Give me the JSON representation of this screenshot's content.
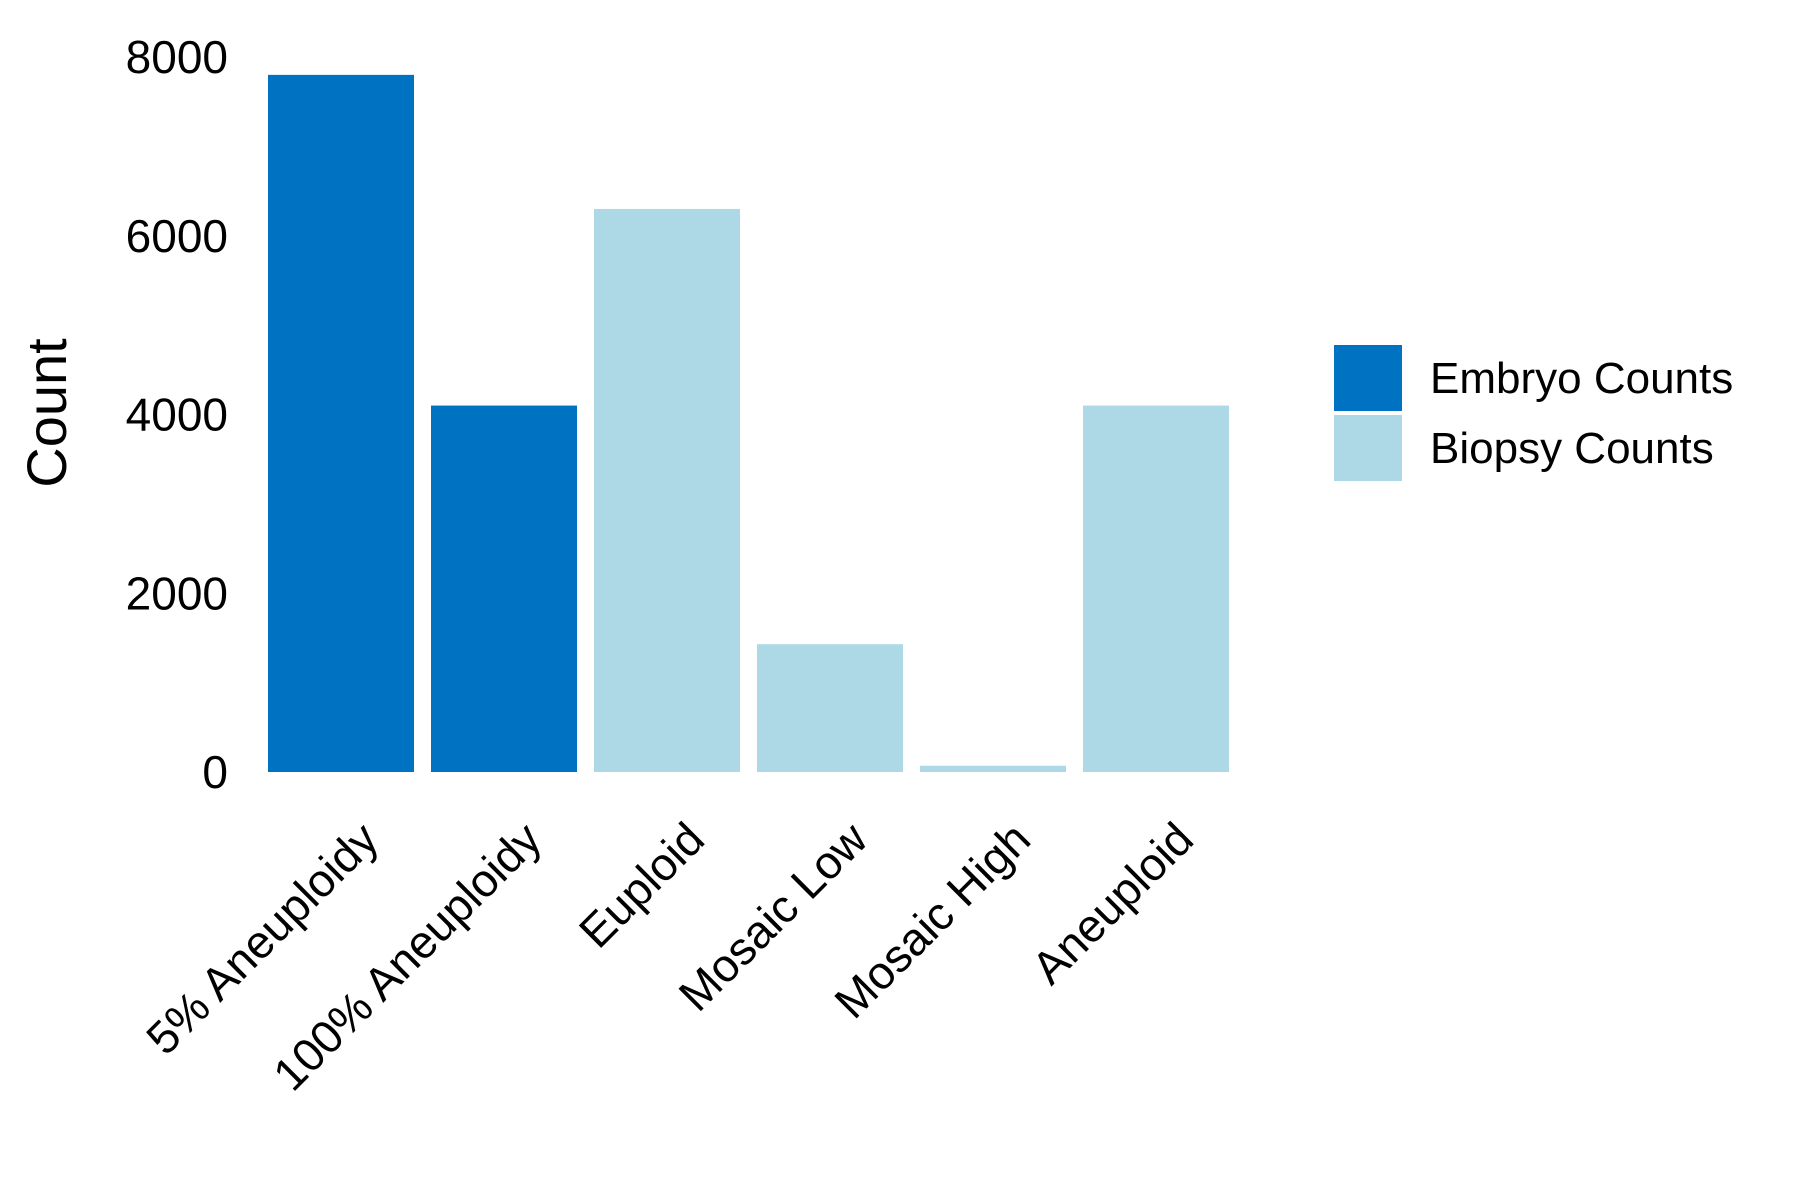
{
  "chart_data": {
    "type": "bar",
    "categories": [
      "5% Aneuploidy",
      "100% Aneuploidy",
      "Euploid",
      "Mosaic Low",
      "Mosaic High",
      "Aneuploid"
    ],
    "series": [
      {
        "name": "Embryo Counts",
        "color": "#0072C2",
        "values": [
          7800,
          4100,
          null,
          null,
          null,
          null
        ]
      },
      {
        "name": "Biopsy Counts",
        "color": "#ADD8E6",
        "values": [
          null,
          null,
          6300,
          1430,
          70,
          4100
        ]
      }
    ],
    "title": "",
    "xlabel": "",
    "ylabel": "Count",
    "ylim": [
      0,
      8000
    ],
    "yticks": [
      "0",
      "2000",
      "4000",
      "6000",
      "8000"
    ],
    "grid": false,
    "legend_position": "right"
  }
}
